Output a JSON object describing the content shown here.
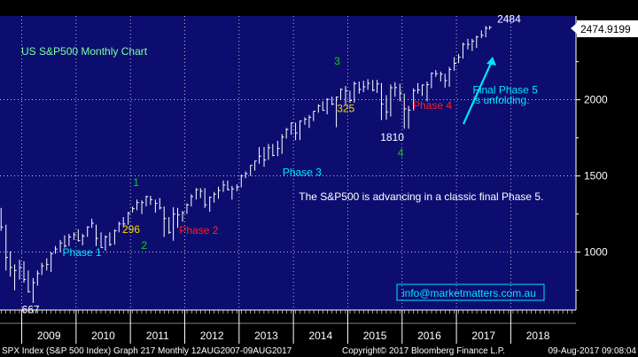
{
  "chart_data": {
    "type": "line",
    "title": "US S&P500 Monthly Chart",
    "y_ticks": [
      1000,
      1500,
      2000
    ],
    "ylim": [
      620,
      2550
    ],
    "x_ticks": [
      "2009",
      "2010",
      "2011",
      "2012",
      "2013",
      "2014",
      "2015",
      "2016",
      "2017",
      "2018"
    ],
    "last_value_label": "2474.9199",
    "grid": true,
    "series": [
      {
        "values": [
          [
            2008.62,
            1290,
            1140,
            1165
          ],
          [
            2008.71,
            1180,
            880,
            965
          ],
          [
            2008.79,
            1005,
            840,
            900
          ],
          [
            2008.87,
            920,
            750,
            880
          ],
          [
            2008.96,
            950,
            820,
            900
          ],
          [
            2009.04,
            940,
            800,
            820
          ],
          [
            2009.12,
            880,
            735,
            740
          ],
          [
            2009.21,
            830,
            667,
            800
          ],
          [
            2009.29,
            880,
            780,
            860
          ],
          [
            2009.37,
            930,
            850,
            910
          ],
          [
            2009.46,
            960,
            880,
            920
          ],
          [
            2009.54,
            1000,
            870,
            990
          ],
          [
            2009.62,
            1040,
            990,
            1020
          ],
          [
            2009.71,
            1080,
            1000,
            1060
          ],
          [
            2009.79,
            1110,
            1030,
            1040
          ],
          [
            2009.87,
            1120,
            1040,
            1100
          ],
          [
            2009.96,
            1130,
            1080,
            1115
          ],
          [
            2010.04,
            1150,
            1070,
            1075
          ],
          [
            2010.12,
            1120,
            1045,
            1105
          ],
          [
            2010.21,
            1170,
            1100,
            1165
          ],
          [
            2010.29,
            1220,
            1160,
            1190
          ],
          [
            2010.37,
            1180,
            1040,
            1090
          ],
          [
            2010.46,
            1130,
            1030,
            1030
          ],
          [
            2010.54,
            1110,
            1010,
            1100
          ],
          [
            2010.62,
            1130,
            1040,
            1050
          ],
          [
            2010.71,
            1150,
            1050,
            1140
          ],
          [
            2010.79,
            1200,
            1130,
            1185
          ],
          [
            2010.87,
            1230,
            1170,
            1185
          ],
          [
            2010.96,
            1265,
            1180,
            1255
          ],
          [
            2011.04,
            1300,
            1260,
            1285
          ],
          [
            2011.12,
            1345,
            1275,
            1325
          ],
          [
            2011.21,
            1340,
            1250,
            1325
          ],
          [
            2011.29,
            1370,
            1300,
            1365
          ],
          [
            2011.37,
            1370,
            1310,
            1345
          ],
          [
            2011.46,
            1345,
            1260,
            1320
          ],
          [
            2011.54,
            1355,
            1280,
            1290
          ],
          [
            2011.62,
            1300,
            1100,
            1220
          ],
          [
            2011.71,
            1230,
            1120,
            1130
          ],
          [
            2011.79,
            1295,
            1075,
            1250
          ],
          [
            2011.87,
            1290,
            1160,
            1245
          ],
          [
            2011.96,
            1270,
            1200,
            1258
          ],
          [
            2012.04,
            1320,
            1250,
            1310
          ],
          [
            2012.12,
            1380,
            1300,
            1365
          ],
          [
            2012.21,
            1420,
            1345,
            1410
          ],
          [
            2012.29,
            1420,
            1355,
            1400
          ],
          [
            2012.37,
            1420,
            1290,
            1310
          ],
          [
            2012.46,
            1365,
            1265,
            1360
          ],
          [
            2012.54,
            1395,
            1325,
            1380
          ],
          [
            2012.62,
            1430,
            1350,
            1405
          ],
          [
            2012.71,
            1470,
            1395,
            1440
          ],
          [
            2012.79,
            1470,
            1405,
            1410
          ],
          [
            2012.87,
            1435,
            1345,
            1415
          ],
          [
            2012.96,
            1445,
            1400,
            1426
          ],
          [
            2013.04,
            1510,
            1425,
            1500
          ],
          [
            2013.12,
            1530,
            1485,
            1515
          ],
          [
            2013.21,
            1570,
            1500,
            1570
          ],
          [
            2013.29,
            1600,
            1535,
            1598
          ],
          [
            2013.37,
            1690,
            1580,
            1630
          ],
          [
            2013.46,
            1690,
            1560,
            1605
          ],
          [
            2013.54,
            1710,
            1605,
            1685
          ],
          [
            2013.62,
            1710,
            1630,
            1635
          ],
          [
            2013.71,
            1730,
            1630,
            1680
          ],
          [
            2013.79,
            1775,
            1645,
            1755
          ],
          [
            2013.87,
            1815,
            1745,
            1805
          ],
          [
            2013.96,
            1850,
            1770,
            1848
          ],
          [
            2014.04,
            1850,
            1735,
            1782
          ],
          [
            2014.12,
            1865,
            1735,
            1860
          ],
          [
            2014.21,
            1885,
            1835,
            1872
          ],
          [
            2014.29,
            1900,
            1815,
            1885
          ],
          [
            2014.37,
            1925,
            1860,
            1925
          ],
          [
            2014.46,
            1970,
            1915,
            1960
          ],
          [
            2014.54,
            1990,
            1930,
            1930
          ],
          [
            2014.62,
            2010,
            1905,
            2003
          ],
          [
            2014.71,
            2020,
            1965,
            1972
          ],
          [
            2014.79,
            2020,
            1820,
            2018
          ],
          [
            2014.87,
            2075,
            2000,
            2068
          ],
          [
            2014.96,
            2090,
            1970,
            2058
          ],
          [
            2015.04,
            2060,
            1980,
            1995
          ],
          [
            2015.12,
            2120,
            1980,
            2105
          ],
          [
            2015.21,
            2120,
            2040,
            2068
          ],
          [
            2015.29,
            2125,
            2050,
            2085
          ],
          [
            2015.37,
            2135,
            2065,
            2108
          ],
          [
            2015.46,
            2130,
            2055,
            2063
          ],
          [
            2015.54,
            2130,
            2045,
            2104
          ],
          [
            2015.62,
            2110,
            1867,
            1972
          ],
          [
            2015.71,
            2030,
            1870,
            1920
          ],
          [
            2015.79,
            2100,
            1890,
            2079
          ],
          [
            2015.87,
            2115,
            2020,
            2080
          ],
          [
            2015.96,
            2105,
            1990,
            2044
          ],
          [
            2016.04,
            2040,
            1810,
            1940
          ],
          [
            2016.12,
            1960,
            1810,
            1932
          ],
          [
            2016.21,
            2075,
            1930,
            2060
          ],
          [
            2016.29,
            2110,
            2040,
            2065
          ],
          [
            2016.37,
            2100,
            2025,
            2097
          ],
          [
            2016.46,
            2120,
            1990,
            2099
          ],
          [
            2016.54,
            2180,
            2075,
            2174
          ],
          [
            2016.62,
            2195,
            2150,
            2171
          ],
          [
            2016.71,
            2185,
            2120,
            2168
          ],
          [
            2016.79,
            2170,
            2080,
            2126
          ],
          [
            2016.87,
            2215,
            2085,
            2199
          ],
          [
            2016.96,
            2280,
            2190,
            2239
          ],
          [
            2017.04,
            2300,
            2240,
            2279
          ],
          [
            2017.12,
            2375,
            2270,
            2364
          ],
          [
            2017.21,
            2400,
            2330,
            2363
          ],
          [
            2017.29,
            2400,
            2320,
            2384
          ],
          [
            2017.37,
            2420,
            2340,
            2412
          ],
          [
            2017.46,
            2455,
            2405,
            2423
          ],
          [
            2017.54,
            2484,
            2410,
            2470
          ],
          [
            2017.61,
            2484,
            2460,
            2475
          ]
        ]
      }
    ],
    "annotations": [
      {
        "text": "667",
        "color": "#ffffff",
        "x": 2009.0,
        "y": 600
      },
      {
        "text": "Phase 1",
        "color": "#00e5ff",
        "x": 2009.75,
        "y": 975
      },
      {
        "text": "1",
        "color": "#00dd00",
        "x": 2011.05,
        "y": 1435
      },
      {
        "text": "296",
        "color": "#ffd700",
        "x": 2010.85,
        "y": 1125
      },
      {
        "text": "2",
        "color": "#00dd00",
        "x": 2011.2,
        "y": 1020
      },
      {
        "text": "Phase 2",
        "color": "#ff2020",
        "x": 2011.9,
        "y": 1120
      },
      {
        "text": "Phase 3",
        "color": "#00e5ff",
        "x": 2013.8,
        "y": 1500
      },
      {
        "text": "3",
        "color": "#00dd00",
        "x": 2014.75,
        "y": 2230
      },
      {
        "text": "325",
        "color": "#ffd700",
        "x": 2014.8,
        "y": 1920
      },
      {
        "text": "1810",
        "color": "#ffffff",
        "x": 2015.6,
        "y": 1730
      },
      {
        "text": "4",
        "color": "#00dd00",
        "x": 2015.92,
        "y": 1630
      },
      {
        "text": "Phase 4",
        "color": "#ff2020",
        "x": 2016.2,
        "y": 1940
      },
      {
        "text": "2484",
        "color": "#ffffff",
        "x": 2017.75,
        "y": 2505
      },
      {
        "text": "The S&P500 is advancing in a classic final Phase 5.",
        "color": "#ffffff",
        "x": 2014.1,
        "y": 1340
      },
      {
        "text": "Final Phase 5",
        "color": "#00e5ff",
        "x": 2017.3,
        "y": 2040
      },
      {
        "text": "is unfolding.",
        "color": "#00e5ff",
        "x": 2017.3,
        "y": 1975
      }
    ],
    "footer_text": "info@marketmatters.com.au",
    "status_bar": {
      "left": "SPX Index (S&P 500 Index) Graph 217  Monthly 12AUG2007-09AUG2017",
      "center": "Copyright© 2017 Bloomberg Finance L.P.",
      "right": "09-Aug-2017 09:08:04"
    }
  },
  "colors": {
    "background": "#000000",
    "plot_bg": "#0d0d70",
    "grid": "#ffffff",
    "bars": "#ffffff",
    "accent_cyan": "#00e5ff",
    "title_green": "#7dff9f"
  }
}
